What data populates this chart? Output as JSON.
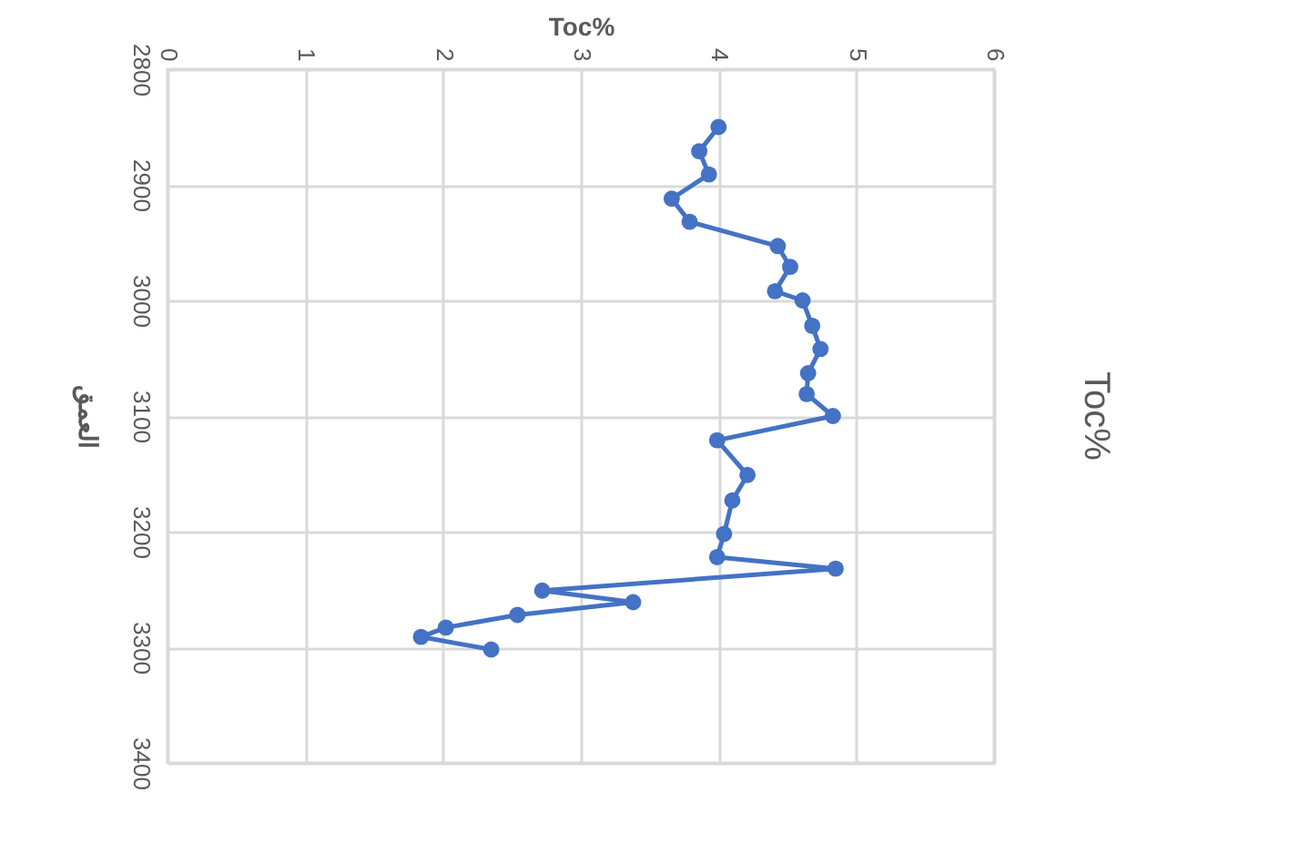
{
  "chart_data": {
    "type": "line",
    "title": "Toc%",
    "xlabel": "Toc%",
    "ylabel": "العمق",
    "xlim": [
      0,
      6
    ],
    "xticks": [
      0,
      1,
      2,
      3,
      4,
      5,
      6
    ],
    "ylim": [
      3400,
      2800
    ],
    "yticks": [
      2800,
      2900,
      3000,
      3100,
      3200,
      3300,
      3400
    ],
    "grid": true,
    "marker": "circle",
    "line_style": "solid",
    "series": [
      {
        "color": "#4472c4",
        "x": [
          4.0,
          3.86,
          3.93,
          3.66,
          3.79,
          4.43,
          4.52,
          4.41,
          4.61,
          4.68,
          4.74,
          4.65,
          4.64,
          4.83,
          3.99,
          4.21,
          4.1,
          4.04,
          3.99,
          4.85,
          2.72,
          3.38,
          2.54,
          2.02,
          1.84,
          2.35
        ],
        "values": [
          2850,
          2871,
          2891,
          2912,
          2932,
          2953,
          2971,
          2992,
          3000,
          3022,
          3042,
          3063,
          3081,
          3100,
          3121,
          3151,
          3173,
          3202,
          3222,
          3232,
          3251,
          3261,
          3272,
          3283,
          3291,
          3302
        ]
      }
    ]
  }
}
